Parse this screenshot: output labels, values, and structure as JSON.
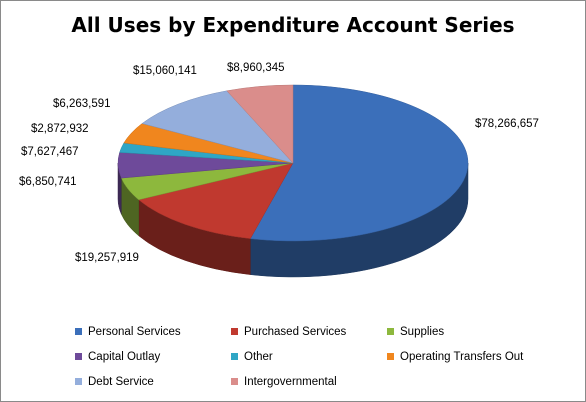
{
  "chart_data": {
    "type": "pie",
    "title": "All Uses by Expenditure Account Series",
    "legend_position": "bottom",
    "slices": [
      {
        "name": "Personal Services",
        "value": 78266657,
        "label": "$78,266,657",
        "color": "#3B6FBA"
      },
      {
        "name": "Purchased Services",
        "value": 19257919,
        "label": "$19,257,919",
        "color": "#C0392F"
      },
      {
        "name": "Supplies",
        "value": 6850741,
        "label": "$6,850,741",
        "color": "#8DB83D"
      },
      {
        "name": "Capital Outlay",
        "value": 7627467,
        "label": "$7,627,467",
        "color": "#6E4A9A"
      },
      {
        "name": "Other",
        "value": 2872932,
        "label": "$2,872,932",
        "color": "#2FA6C5"
      },
      {
        "name": "Operating Transfers Out",
        "value": 6263591,
        "label": "$6,263,591",
        "color": "#F0861E"
      },
      {
        "name": "Debt Service",
        "value": 15060141,
        "label": "$15,060,141",
        "color": "#94AEDC"
      },
      {
        "name": "Intergovernmental",
        "value": 8960345,
        "label": "$8,960,345",
        "color": "#DA8D8B"
      }
    ]
  }
}
